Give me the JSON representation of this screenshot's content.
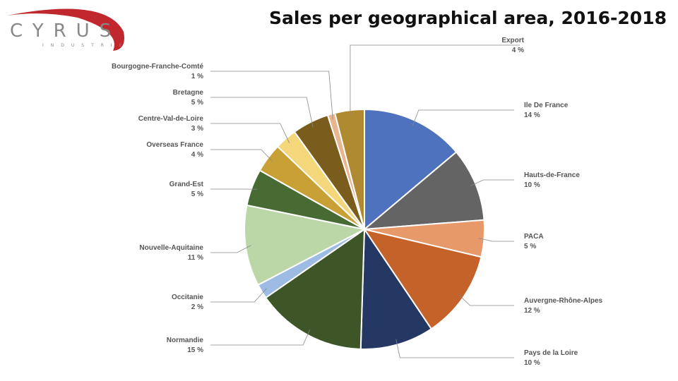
{
  "logo": {
    "name": "CYRUS",
    "tagline": "INDUSTRIE"
  },
  "chart_data": {
    "type": "pie",
    "title": "Sales per geographical area, 2016-2018",
    "categories": [
      "Ile De France",
      "Hauts-de-France",
      "PACA",
      "Auvergne-Rhône-Alpes",
      "Pays de la Loire",
      "Normandie",
      "Occitanie",
      "Nouvelle-Aquitaine",
      "Grand-Est",
      "Overseas France",
      "Centre-Val-de-Loire",
      "Bretagne",
      "Bourgogne-Franche-Comté",
      "Export"
    ],
    "values": [
      14,
      10,
      5,
      12,
      10,
      15,
      2,
      11,
      5,
      4,
      3,
      5,
      1,
      4
    ],
    "value_labels": [
      "14 %",
      "10 %",
      "5 %",
      "12 %",
      "10 %",
      "15 %",
      "2 %",
      "11 %",
      "5 %",
      "4 %",
      "3 %",
      "5 %",
      "1 %",
      "4 %"
    ],
    "colors": [
      "#4f72be",
      "#646464",
      "#e8996a",
      "#c5622a",
      "#253864",
      "#3e5528",
      "#9ebbe3",
      "#bcd7a7",
      "#486b34",
      "#c9a035",
      "#f4d77a",
      "#7a5c1d",
      "#e8b590",
      "#b08a30"
    ]
  }
}
